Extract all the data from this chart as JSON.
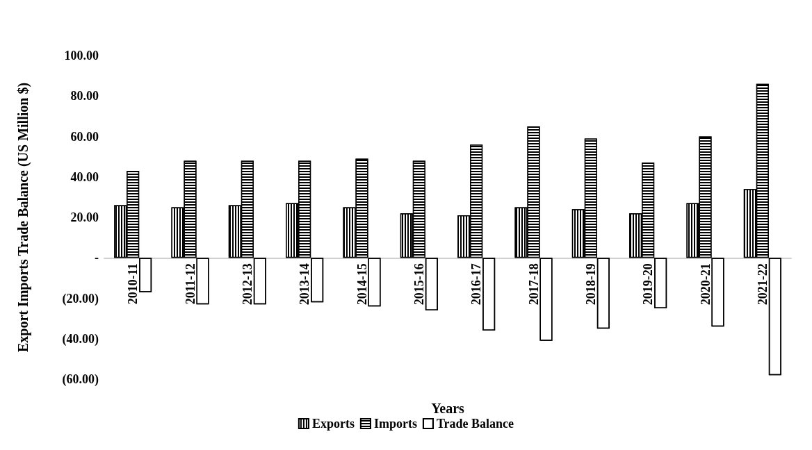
{
  "chart_data": {
    "type": "bar",
    "xlabel": "Years",
    "ylabel": "Export Imports Trade Balance (US Million $)",
    "categories": [
      "2010-11",
      "2011-12",
      "2012-13",
      "2013-14",
      "2014-15",
      "2015-16",
      "2016-17",
      "2017-18",
      "2018-19",
      "2019-20",
      "2020-21",
      "2021-22"
    ],
    "series": [
      {
        "name": "Exports",
        "color": "#000000",
        "values": [
          26,
          25,
          26,
          27,
          25,
          22,
          21,
          25,
          24,
          22,
          27,
          34
        ]
      },
      {
        "name": "Imports",
        "color": "#000000",
        "values": [
          43,
          48,
          48,
          48,
          49,
          48,
          56,
          65,
          59,
          47,
          60,
          86
        ]
      },
      {
        "name": "Trade Balance",
        "color": "#ffffff",
        "values": [
          -17,
          -23,
          -23,
          -22,
          -24,
          -26,
          -36,
          -41,
          -35,
          -25,
          -34,
          -58
        ]
      }
    ],
    "ylim": [
      -60,
      100
    ],
    "yticks": [
      {
        "value": -60,
        "label": "(60.00)"
      },
      {
        "value": -40,
        "label": "(40.00)"
      },
      {
        "value": -20,
        "label": "(20.00)"
      },
      {
        "value": 0,
        "label": "-"
      },
      {
        "value": 20,
        "label": "20.00"
      },
      {
        "value": 40,
        "label": "40.00"
      },
      {
        "value": 60,
        "label": "60.00"
      },
      {
        "value": 80,
        "label": "80.00"
      },
      {
        "value": 100,
        "label": "100.00"
      }
    ],
    "grid": false,
    "legend": "bottom"
  }
}
